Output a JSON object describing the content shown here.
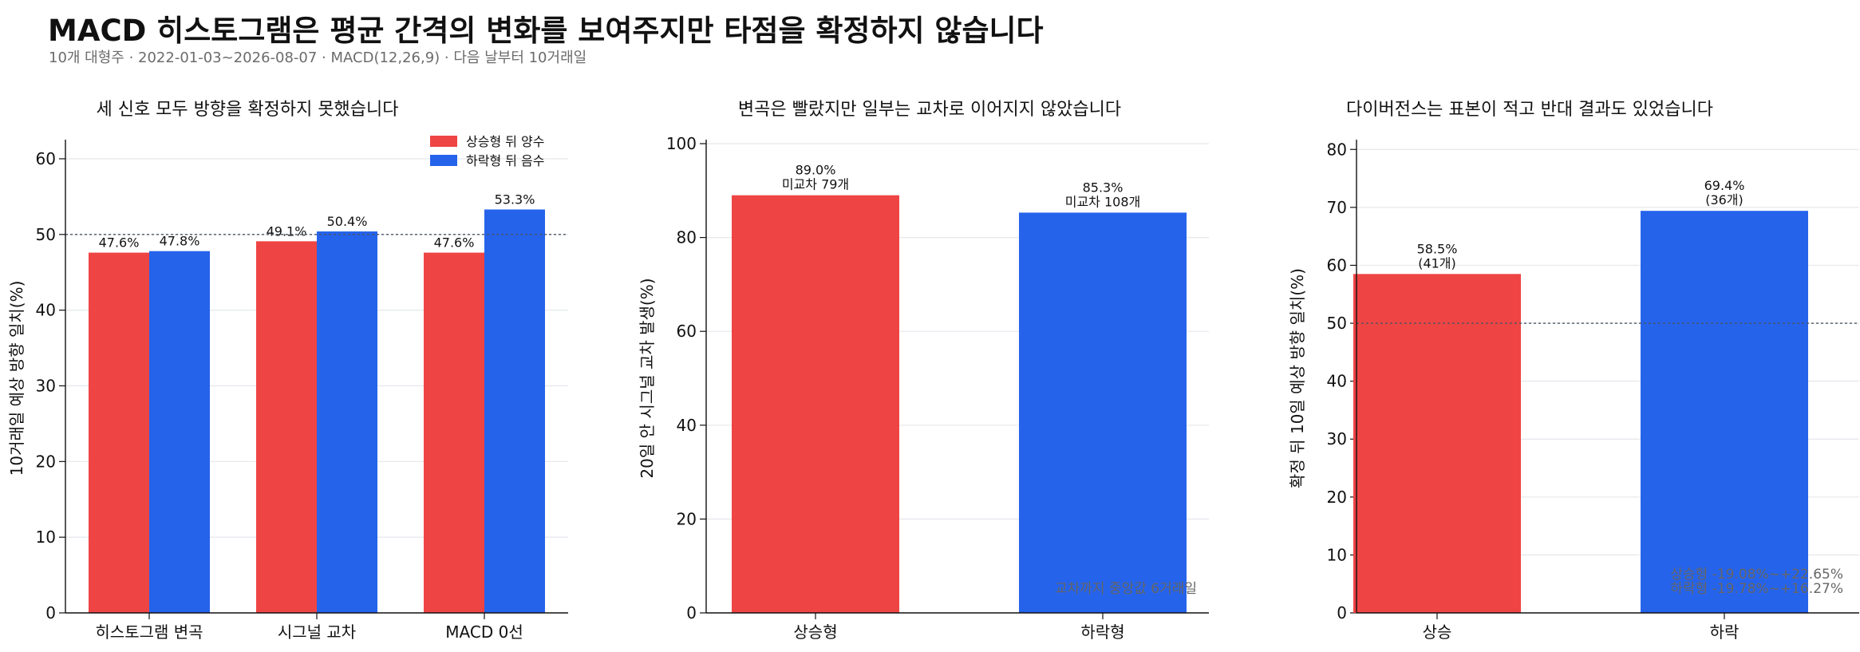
{
  "header": {
    "title": "MACD 히스토그램은 평균 간격의 변화를 보여주지만 타점을 확정하지 않습니다",
    "subtitle": "10개 대형주 · 2022-01-03~2026-08-07 · MACD(12,26,9) · 다음 날부터 10거래일"
  },
  "colors": {
    "up": "#EF4444",
    "down": "#2563EB",
    "grid": "#E5E7EB",
    "refline": "#4B5563"
  },
  "chart_data": [
    {
      "type": "bar",
      "title": "세 신호 모두 방향을 확정하지 못했습니다",
      "ylabel": "10거래일 예상 방향 일치(%)",
      "ylim": [
        0,
        62
      ],
      "yticks": [
        0,
        10,
        20,
        30,
        40,
        50,
        60
      ],
      "reference_line": 50,
      "categories": [
        "히스토그램 변곡",
        "시그널 교차",
        "MACD 0선"
      ],
      "legend_position": "top-right",
      "series": [
        {
          "name": "상승형 뒤 양수",
          "color": "#EF4444",
          "values": [
            47.6,
            49.1,
            47.6
          ],
          "labels": [
            "47.6%",
            "49.1%",
            "47.6%"
          ]
        },
        {
          "name": "하락형 뒤 음수",
          "color": "#2563EB",
          "values": [
            47.8,
            50.4,
            53.3
          ],
          "labels": [
            "47.8%",
            "50.4%",
            "53.3%"
          ]
        }
      ]
    },
    {
      "type": "bar",
      "title": "변곡은 빨랐지만 일부는 교차로 이어지지 않았습니다",
      "ylabel": "20일 안 시그널 교차 발생(%)",
      "ylim": [
        0,
        100
      ],
      "yticks": [
        0,
        20,
        40,
        60,
        80,
        100
      ],
      "categories": [
        "상승형",
        "하락형"
      ],
      "colors": [
        "#EF4444",
        "#2563EB"
      ],
      "values": [
        89.0,
        85.3
      ],
      "labels": [
        [
          "89.0%",
          "미교차 79개"
        ],
        [
          "85.3%",
          "미교차 108개"
        ]
      ],
      "annotation": "교차까지 중앙값 6거래일"
    },
    {
      "type": "bar",
      "title": "다이버전스는 표본이 적고 반대 결과도 있었습니다",
      "ylabel": "확정 뒤 10일 예상 방향 일치(%)",
      "ylim": [
        0,
        81
      ],
      "yticks": [
        0,
        10,
        20,
        30,
        40,
        50,
        60,
        70,
        80
      ],
      "reference_line": 50,
      "categories": [
        "상승",
        "하락"
      ],
      "colors": [
        "#EF4444",
        "#2563EB"
      ],
      "values": [
        58.5,
        69.4
      ],
      "labels": [
        [
          "58.5%",
          "(41개)"
        ],
        [
          "69.4%",
          "(36개)"
        ]
      ],
      "annotation_lines": [
        "상승형 -19.08%~+22.65%",
        "하락형 -19.78%~+16.27%"
      ]
    }
  ]
}
